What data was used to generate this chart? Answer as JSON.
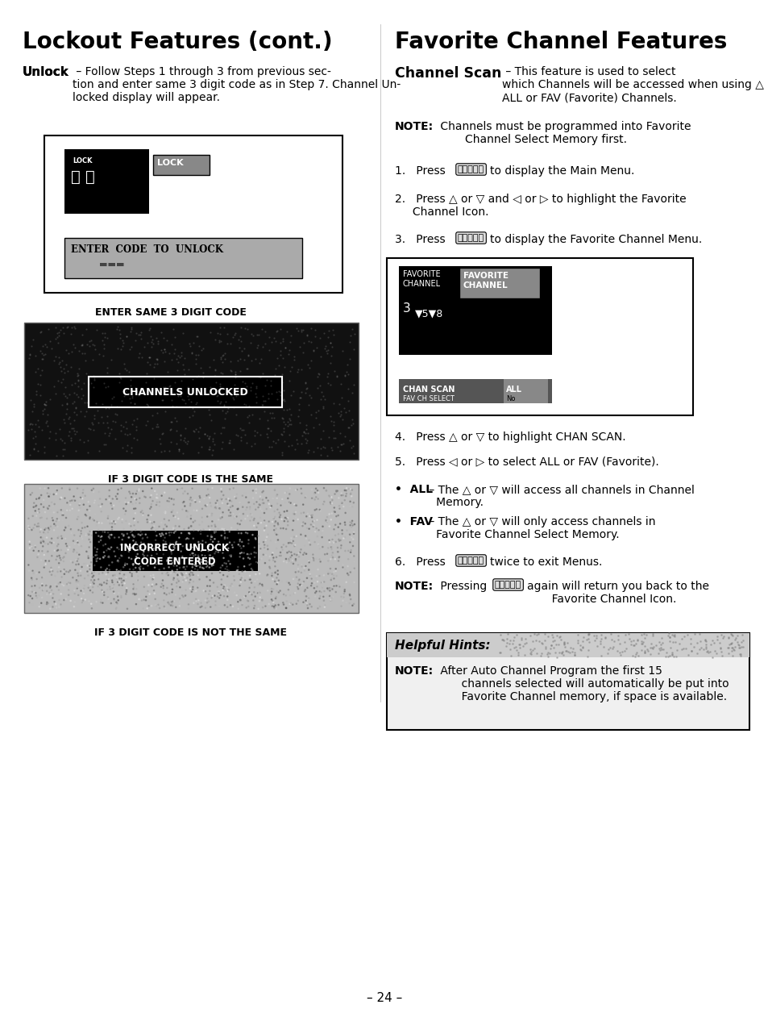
{
  "page_bg": "#ffffff",
  "left_title": "Lockout Features (cont.)",
  "right_title": "Favorite Channel Features",
  "left_subtitle_bold": "Unlock",
  "left_subtitle_text": " – Follow Steps 1 through 3 from previous sec-\ntion and enter same 3 digit code as in Step 7. Channel Un-\nlocked display will appear.",
  "caption1": "ENTER SAME 3 DIGIT CODE",
  "caption2": "IF 3 DIGIT CODE IS THE SAME",
  "caption3": "IF 3 DIGIT CODE IS NOT THE SAME",
  "right_subtitle_bold": "Channel Scan",
  "right_subtitle_text": " – This feature is used to select\nwhich Channels will be accessed when using △ or ▽,\nALL or FAV (Favorite) Channels.",
  "note1_bold": "NOTE:",
  "note1_text": " Channels must be programmed into Favorite\n       Channel Select Memory first.",
  "step1": "1.   Press ⒶⓄⓃⒸⒽ to display the Main Menu.",
  "step2": "2.   Press △ or ▽ and ◁ or ▷ to highlight the Favorite\n     Channel Icon.",
  "step3": "3.   Press ⒶⓄⓃⒸⒽ to display the Favorite Channel Menu.",
  "step4": "4.   Press △ or ▽ to highlight CHAN SCAN.",
  "step5": "5.   Press ◁ or ▷ to select ALL or FAV (Favorite).",
  "bullet1_bold": "•  ALL",
  "bullet1_text": " – The △ or ▽ will access all channels in Channel\n   Memory.",
  "bullet2_bold": "•  FAV",
  "bullet2_text": " – The △ or ▽ will only access channels in\n   Favorite Channel Select Memory.",
  "step6": "6.   Press ⒶⓄⓃⒸⒽ twice to exit Menus.",
  "note2_bold": "NOTE:",
  "note2_text": " Pressing ⒶⓄⓃⒸⒽ again will return you back to the\n       Favorite Channel Icon.",
  "helpful_title": "Helpful Hints:",
  "helpful_note_bold": "NOTE:",
  "helpful_note_text": " After Auto Channel Program the first 15\n       channels selected will automatically be put into\n       Favorite Channel memory, if space is available.",
  "page_num": "– 24 –"
}
